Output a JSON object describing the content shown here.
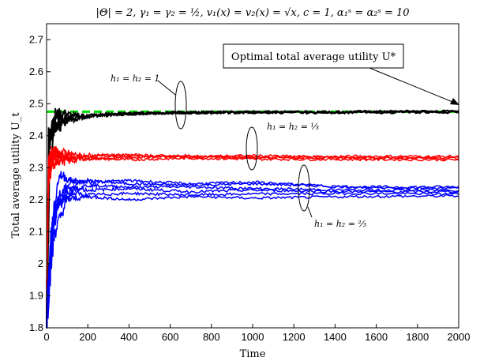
{
  "chart_data": {
    "type": "line",
    "title": "|Θ| = 2, γ₁ = γ₂ = ½, v₁(x) = v₂(x) = √x, c = 1, α₁ˢ = α₂ˢ = 10",
    "xlabel": "Time",
    "ylabel": "Total average utility U_t",
    "xlim": [
      0,
      2000
    ],
    "ylim": [
      1.8,
      2.75
    ],
    "xticks": [
      "0",
      "200",
      "400",
      "600",
      "800",
      "1000",
      "1200",
      "1400",
      "1600",
      "1800",
      "2000"
    ],
    "yticks": [
      "1.8",
      "1.9",
      "2",
      "2.1",
      "2.2",
      "2.3",
      "2.4",
      "2.5",
      "2.6",
      "2.7"
    ],
    "grid": false,
    "series": [
      {
        "color": "#00dd00",
        "style": "dashed",
        "values": [
          [
            0,
            2.475
          ],
          [
            2000,
            2.475
          ]
        ]
      },
      {
        "color": "#000000",
        "values": [
          [
            0,
            1.8
          ],
          [
            10,
            2.4
          ],
          [
            30,
            2.42
          ],
          [
            60,
            2.44
          ],
          [
            100,
            2.455
          ],
          [
            200,
            2.462
          ],
          [
            400,
            2.468
          ],
          [
            600,
            2.472
          ],
          [
            1000,
            2.474
          ],
          [
            2000,
            2.476
          ]
        ]
      },
      {
        "color": "#000000",
        "values": [
          [
            0,
            1.85
          ],
          [
            10,
            2.35
          ],
          [
            30,
            2.45
          ],
          [
            60,
            2.43
          ],
          [
            100,
            2.45
          ],
          [
            200,
            2.46
          ],
          [
            400,
            2.47
          ],
          [
            800,
            2.473
          ],
          [
            2000,
            2.475
          ]
        ]
      },
      {
        "color": "#000000",
        "values": [
          [
            0,
            1.82
          ],
          [
            15,
            2.3
          ],
          [
            40,
            2.46
          ],
          [
            80,
            2.47
          ],
          [
            150,
            2.46
          ],
          [
            300,
            2.468
          ],
          [
            600,
            2.472
          ],
          [
            2000,
            2.474
          ]
        ]
      },
      {
        "color": "#ff0000",
        "values": [
          [
            0,
            1.9
          ],
          [
            10,
            2.3
          ],
          [
            40,
            2.345
          ],
          [
            100,
            2.33
          ],
          [
            200,
            2.34
          ],
          [
            400,
            2.338
          ],
          [
            700,
            2.332
          ],
          [
            1000,
            2.334
          ],
          [
            1500,
            2.33
          ],
          [
            2000,
            2.33
          ]
        ]
      },
      {
        "color": "#ff0000",
        "values": [
          [
            0,
            1.9
          ],
          [
            10,
            2.35
          ],
          [
            40,
            2.32
          ],
          [
            100,
            2.335
          ],
          [
            200,
            2.327
          ],
          [
            400,
            2.332
          ],
          [
            700,
            2.338
          ],
          [
            1000,
            2.33
          ],
          [
            1500,
            2.336
          ],
          [
            2000,
            2.335
          ]
        ]
      },
      {
        "color": "#ff0000",
        "values": [
          [
            0,
            1.9
          ],
          [
            10,
            2.28
          ],
          [
            40,
            2.33
          ],
          [
            100,
            2.32
          ],
          [
            200,
            2.33
          ],
          [
            400,
            2.325
          ],
          [
            700,
            2.33
          ],
          [
            1000,
            2.327
          ],
          [
            1500,
            2.326
          ],
          [
            2000,
            2.325
          ]
        ]
      },
      {
        "color": "#ff0000",
        "values": [
          [
            0,
            1.9
          ],
          [
            10,
            2.32
          ],
          [
            40,
            2.34
          ],
          [
            100,
            2.345
          ],
          [
            200,
            2.335
          ],
          [
            400,
            2.34
          ],
          [
            700,
            2.335
          ],
          [
            1000,
            2.338
          ],
          [
            1500,
            2.332
          ],
          [
            2000,
            2.332
          ]
        ]
      },
      {
        "color": "#0000ff",
        "values": [
          [
            0,
            1.8
          ],
          [
            15,
            2.0
          ],
          [
            40,
            2.15
          ],
          [
            100,
            2.25
          ],
          [
            200,
            2.26
          ],
          [
            400,
            2.25
          ],
          [
            700,
            2.245
          ],
          [
            1000,
            2.25
          ],
          [
            1500,
            2.24
          ],
          [
            2000,
            2.24
          ]
        ]
      },
      {
        "color": "#0000ff",
        "values": [
          [
            0,
            1.8
          ],
          [
            15,
            1.95
          ],
          [
            40,
            2.1
          ],
          [
            100,
            2.2
          ],
          [
            200,
            2.21
          ],
          [
            400,
            2.2
          ],
          [
            700,
            2.21
          ],
          [
            1000,
            2.205
          ],
          [
            1500,
            2.21
          ],
          [
            2000,
            2.212
          ]
        ]
      },
      {
        "color": "#0000ff",
        "values": [
          [
            0,
            1.85
          ],
          [
            20,
            2.05
          ],
          [
            50,
            2.2
          ],
          [
            100,
            2.24
          ],
          [
            200,
            2.23
          ],
          [
            400,
            2.235
          ],
          [
            700,
            2.225
          ],
          [
            1000,
            2.23
          ],
          [
            1500,
            2.225
          ],
          [
            2000,
            2.225
          ]
        ]
      },
      {
        "color": "#0000ff",
        "values": [
          [
            0,
            1.82
          ],
          [
            20,
            2.08
          ],
          [
            60,
            2.28
          ],
          [
            120,
            2.26
          ],
          [
            200,
            2.255
          ],
          [
            400,
            2.26
          ],
          [
            700,
            2.25
          ],
          [
            1000,
            2.255
          ],
          [
            1500,
            2.238
          ],
          [
            2000,
            2.236
          ]
        ]
      },
      {
        "color": "#0000ff",
        "values": [
          [
            0,
            1.8
          ],
          [
            25,
            2.12
          ],
          [
            60,
            2.18
          ],
          [
            120,
            2.22
          ],
          [
            200,
            2.215
          ],
          [
            400,
            2.22
          ],
          [
            700,
            2.215
          ],
          [
            1000,
            2.218
          ],
          [
            1500,
            2.22
          ],
          [
            2000,
            2.218
          ]
        ]
      },
      {
        "color": "#0000ff",
        "values": [
          [
            0,
            1.83
          ],
          [
            15,
            2.02
          ],
          [
            40,
            2.16
          ],
          [
            100,
            2.23
          ],
          [
            200,
            2.245
          ],
          [
            400,
            2.24
          ],
          [
            700,
            2.24
          ],
          [
            1000,
            2.235
          ],
          [
            1500,
            2.23
          ],
          [
            2000,
            2.23
          ]
        ]
      }
    ],
    "annotations": {
      "optimal_box": "Optimal total average utility U*",
      "label_h1": "h₁ = h₂ = 1",
      "label_h13": "h₁ = h₂ = ⅓",
      "label_h23": "h₁ = h₂ = ⅔"
    }
  }
}
